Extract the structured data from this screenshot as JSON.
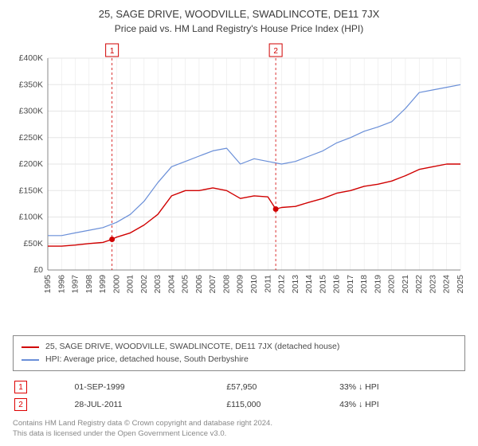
{
  "titles": {
    "line1": "25, SAGE DRIVE, WOODVILLE, SWADLINCOTE, DE11 7JX",
    "line2": "Price paid vs. HM Land Registry's House Price Index (HPI)"
  },
  "chart": {
    "type": "line",
    "background_color": "#ffffff",
    "grid_color": "#e5e5e5",
    "axis_color": "#888888",
    "x": {
      "min": 1995,
      "max": 2025,
      "tick_step": 1,
      "label_rotate": -90,
      "label_fontsize": 10.5
    },
    "y": {
      "min": 0,
      "max": 400000,
      "tick_step": 50000,
      "prefix": "£",
      "suffix": "K",
      "divide": 1000,
      "label_fontsize": 10.5
    },
    "series": [
      {
        "id": "price_paid",
        "label": "25, SAGE DRIVE, WOODVILLE, SWADLINCOTE, DE11 7JX (detached house)",
        "color": "#d00000",
        "line_width": 1.4,
        "points": [
          [
            1995,
            45000
          ],
          [
            1996,
            45000
          ],
          [
            1997,
            47000
          ],
          [
            1998,
            50000
          ],
          [
            1999,
            52000
          ],
          [
            1999.67,
            57950
          ],
          [
            2000,
            62000
          ],
          [
            2001,
            70000
          ],
          [
            2002,
            85000
          ],
          [
            2003,
            105000
          ],
          [
            2004,
            140000
          ],
          [
            2005,
            150000
          ],
          [
            2006,
            150000
          ],
          [
            2007,
            155000
          ],
          [
            2008,
            150000
          ],
          [
            2009,
            135000
          ],
          [
            2010,
            140000
          ],
          [
            2011,
            138000
          ],
          [
            2011.57,
            115000
          ],
          [
            2012,
            118000
          ],
          [
            2013,
            120000
          ],
          [
            2014,
            128000
          ],
          [
            2015,
            135000
          ],
          [
            2016,
            145000
          ],
          [
            2017,
            150000
          ],
          [
            2018,
            158000
          ],
          [
            2019,
            162000
          ],
          [
            2020,
            168000
          ],
          [
            2021,
            178000
          ],
          [
            2022,
            190000
          ],
          [
            2023,
            195000
          ],
          [
            2024,
            200000
          ],
          [
            2025,
            200000
          ]
        ]
      },
      {
        "id": "hpi",
        "label": "HPI: Average price, detached house, South Derbyshire",
        "color": "#6a8fd8",
        "line_width": 1.2,
        "points": [
          [
            1995,
            65000
          ],
          [
            1996,
            65000
          ],
          [
            1997,
            70000
          ],
          [
            1998,
            75000
          ],
          [
            1999,
            80000
          ],
          [
            2000,
            90000
          ],
          [
            2001,
            105000
          ],
          [
            2002,
            130000
          ],
          [
            2003,
            165000
          ],
          [
            2004,
            195000
          ],
          [
            2005,
            205000
          ],
          [
            2006,
            215000
          ],
          [
            2007,
            225000
          ],
          [
            2008,
            230000
          ],
          [
            2009,
            200000
          ],
          [
            2010,
            210000
          ],
          [
            2011,
            205000
          ],
          [
            2012,
            200000
          ],
          [
            2013,
            205000
          ],
          [
            2014,
            215000
          ],
          [
            2015,
            225000
          ],
          [
            2016,
            240000
          ],
          [
            2017,
            250000
          ],
          [
            2018,
            262000
          ],
          [
            2019,
            270000
          ],
          [
            2020,
            280000
          ],
          [
            2021,
            305000
          ],
          [
            2022,
            335000
          ],
          [
            2023,
            340000
          ],
          [
            2024,
            345000
          ],
          [
            2025,
            350000
          ]
        ]
      }
    ],
    "event_lines": [
      {
        "num": "1",
        "year": 1999.67,
        "color": "#d00000",
        "date": "01-SEP-1999",
        "price": "£57,950",
        "delta": "33% ↓ HPI",
        "dot_y": 57950
      },
      {
        "num": "2",
        "year": 2011.57,
        "color": "#d00000",
        "date": "28-JUL-2011",
        "price": "£115,000",
        "delta": "43% ↓ HPI",
        "dot_y": 115000
      }
    ]
  },
  "legend": {
    "items": [
      {
        "color": "#d00000",
        "text": "25, SAGE DRIVE, WOODVILLE, SWADLINCOTE, DE11 7JX (detached house)"
      },
      {
        "color": "#6a8fd8",
        "text": "HPI: Average price, detached house, South Derbyshire"
      }
    ]
  },
  "footer": {
    "line1": "Contains HM Land Registry data © Crown copyright and database right 2024.",
    "line2": "This data is licensed under the Open Government Licence v3.0."
  }
}
